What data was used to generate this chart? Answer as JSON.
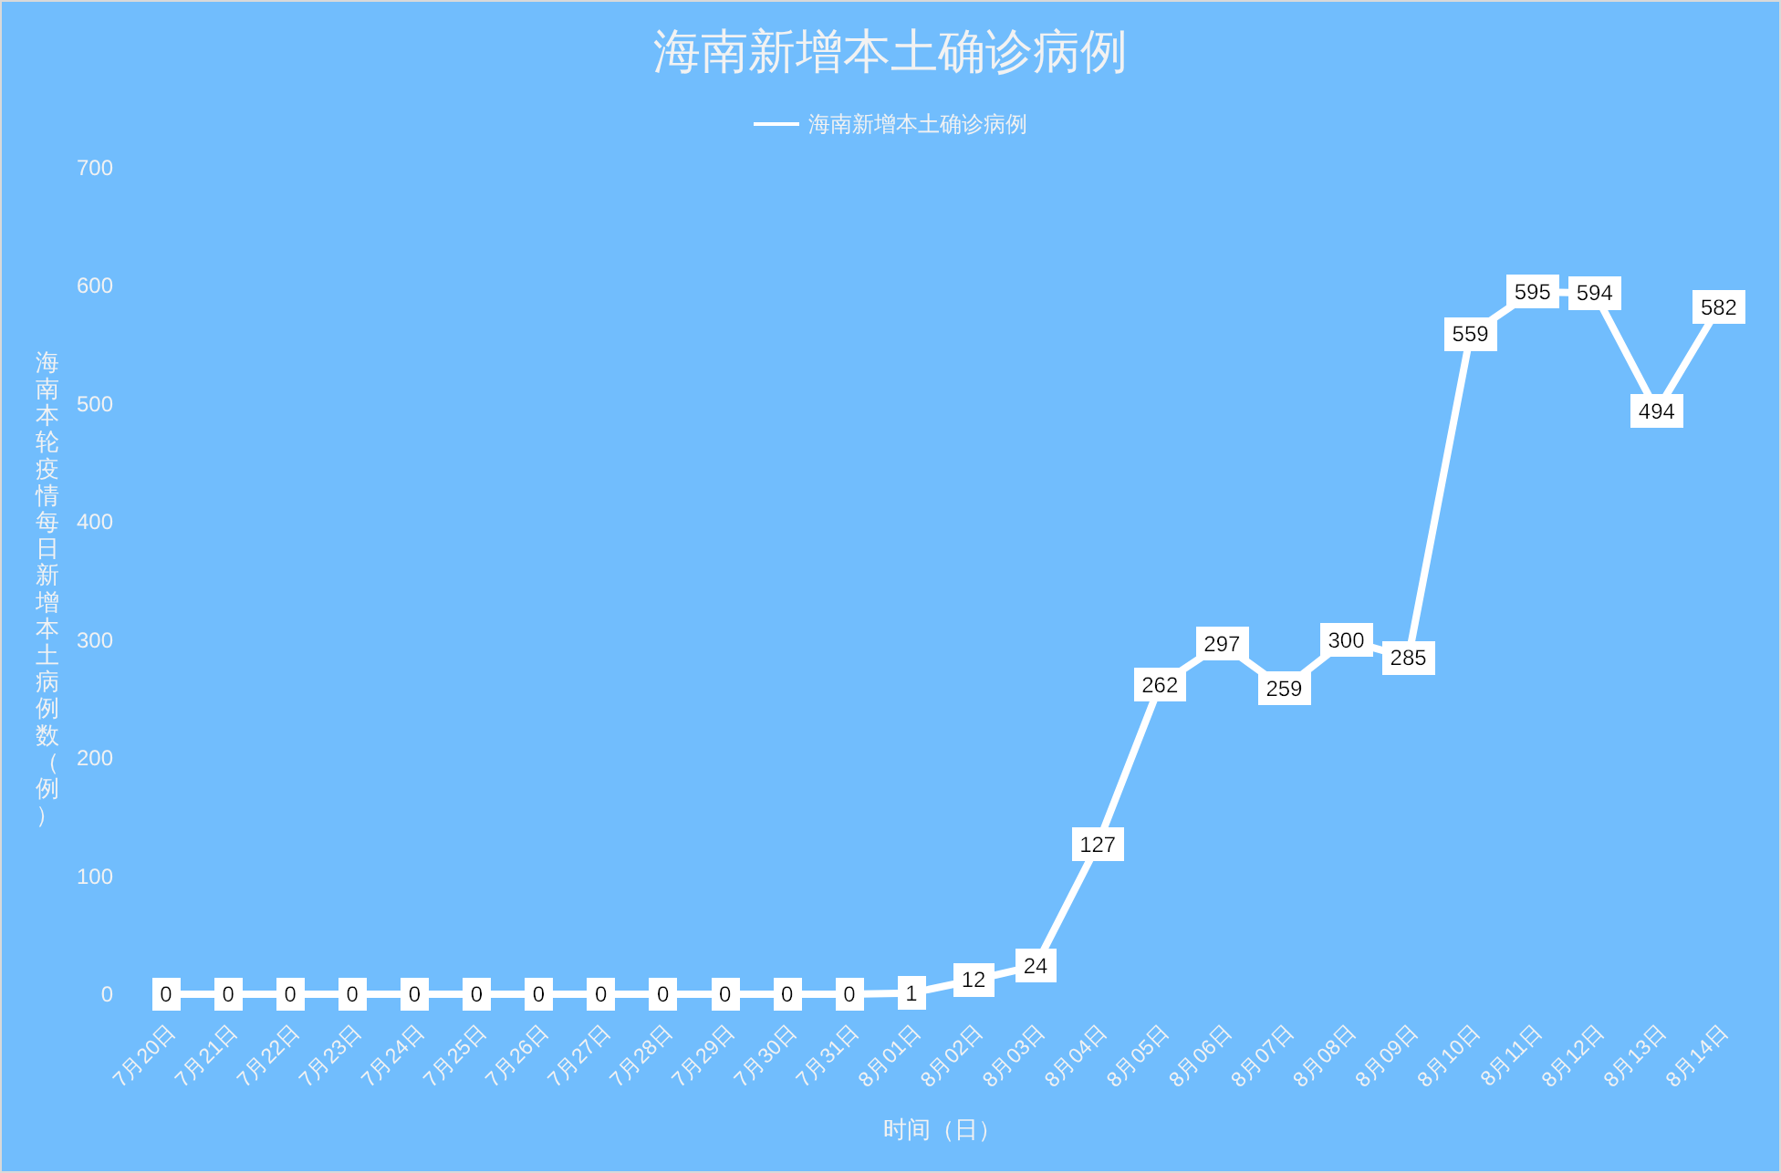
{
  "chart_data": {
    "type": "line",
    "title": "海南新增本土确诊病例",
    "xlabel": "时间（日）",
    "ylabel": "海南本轮疫情每日新增本土病例数（例）",
    "categories": [
      "7月20日",
      "7月21日",
      "7月22日",
      "7月23日",
      "7月24日",
      "7月25日",
      "7月26日",
      "7月27日",
      "7月28日",
      "7月29日",
      "7月30日",
      "7月31日",
      "8月01日",
      "8月02日",
      "8月03日",
      "8月04日",
      "8月05日",
      "8月06日",
      "8月07日",
      "8月08日",
      "8月09日",
      "8月10日",
      "8月11日",
      "8月12日",
      "8月13日",
      "8月14日"
    ],
    "series": [
      {
        "name": "海南新增本土确诊病例",
        "color": "#ffffff",
        "values": [
          0,
          0,
          0,
          0,
          0,
          0,
          0,
          0,
          0,
          0,
          0,
          0,
          1,
          12,
          24,
          127,
          262,
          297,
          259,
          300,
          285,
          559,
          595,
          594,
          494,
          582
        ]
      }
    ],
    "ylim": [
      0,
      700
    ],
    "yticks": [
      0,
      100,
      200,
      300,
      400,
      500,
      600,
      700
    ],
    "legend": "top",
    "data_labels": true,
    "line_style": "solid"
  }
}
